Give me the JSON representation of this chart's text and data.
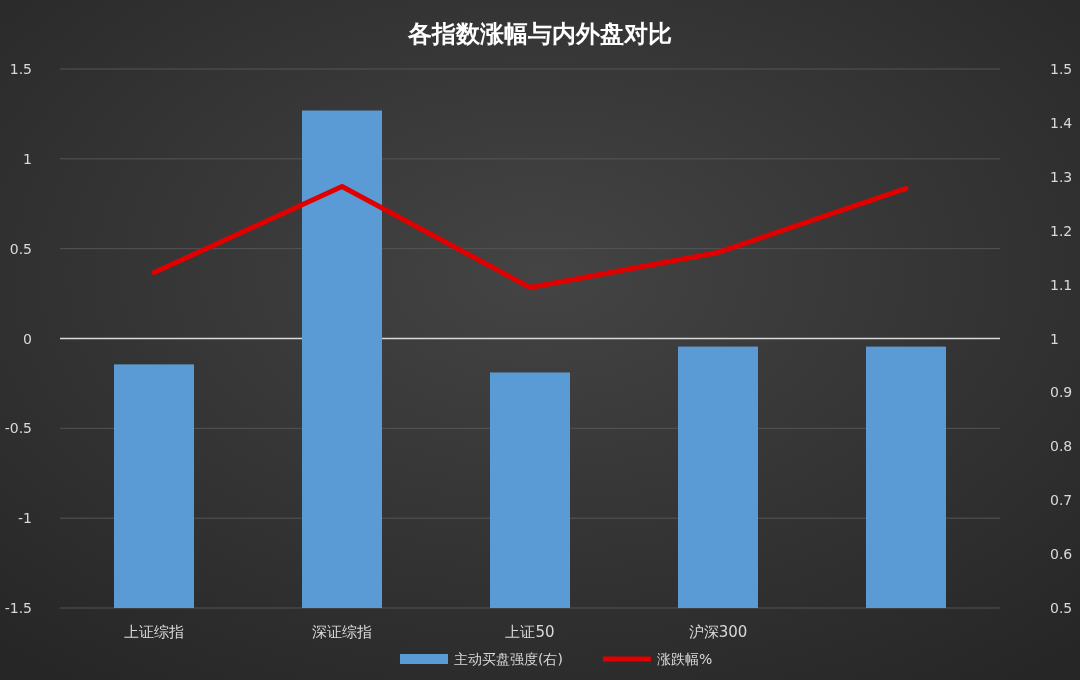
{
  "chart_data": {
    "type": "bar",
    "title": "各指数涨幅与内外盘对比",
    "categories": [
      "上证综指",
      "深证综指",
      "上证50",
      "沪深300",
      null
    ],
    "series": [
      {
        "name": "主动买盘强度(右)",
        "axis": "y2",
        "color": "#5b9bd5",
        "values": [
          0.952,
          1.423,
          0.937,
          0.985,
          0.985
        ]
      },
      {
        "name": "涨跌幅%",
        "type": "line",
        "color": "#e00000",
        "values": [
          0.367,
          0.846,
          0.284,
          0.479,
          0.835
        ]
      }
    ],
    "ylim": [
      -1.5,
      1.5
    ],
    "yticks": [
      -1.5,
      -1,
      -0.5,
      0,
      0.5,
      1,
      1.5
    ],
    "y2lim": [
      0.5,
      1.5
    ],
    "y2ticks": [
      0.5,
      0.6,
      0.7,
      0.8,
      0.9,
      1,
      1.1,
      1.2,
      1.3,
      1.4,
      1.5
    ],
    "grid": "y",
    "legend": "bottom"
  }
}
